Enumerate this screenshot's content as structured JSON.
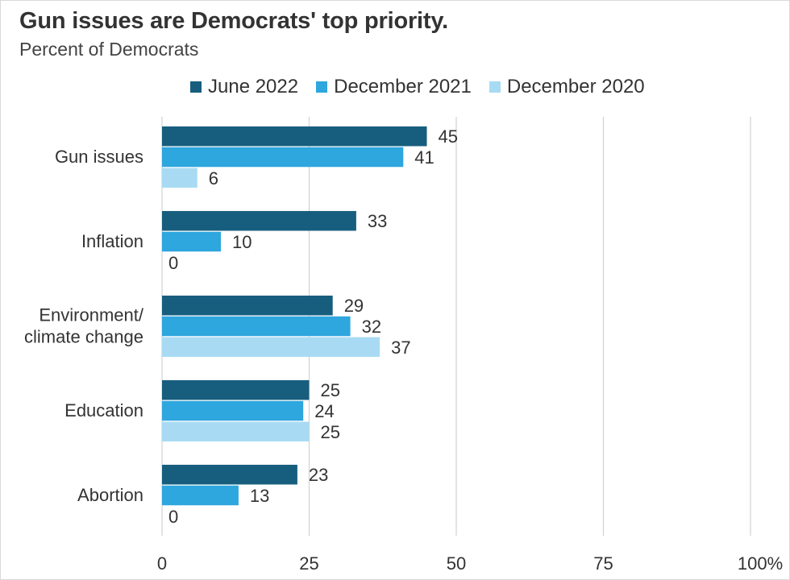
{
  "chart_data": {
    "type": "bar",
    "orientation": "horizontal",
    "title": "Gun issues are Democrats' top priority.",
    "subtitle": "Percent of Democrats",
    "categories": [
      [
        "Gun issues"
      ],
      [
        "Inflation"
      ],
      [
        "Environment/",
        "climate change"
      ],
      [
        "Education"
      ],
      [
        "Abortion"
      ]
    ],
    "series": [
      {
        "name": "June 2022",
        "color": "#175e7e",
        "values": [
          45,
          33,
          29,
          25,
          23
        ]
      },
      {
        "name": "December 2021",
        "color": "#2ea6de",
        "values": [
          41,
          10,
          32,
          24,
          13
        ]
      },
      {
        "name": "December 2020",
        "color": "#a8dbf3",
        "values": [
          6,
          0,
          37,
          25,
          0
        ]
      }
    ],
    "xlim": [
      0,
      100
    ],
    "xticks": [
      0,
      25,
      50,
      75,
      100
    ],
    "xtick_labels": [
      "0",
      "25",
      "50",
      "75",
      "100%"
    ],
    "grid": "vertical",
    "legend_position": "top",
    "gridline_color": "#d3d3d3"
  }
}
